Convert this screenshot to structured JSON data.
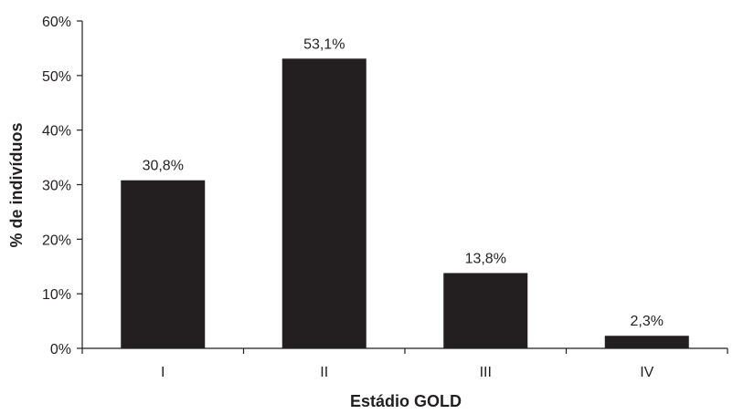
{
  "chart_data": {
    "type": "bar",
    "title": "",
    "xlabel": "Estádio GOLD",
    "ylabel": "% de indivíduos",
    "categories": [
      "I",
      "II",
      "III",
      "IV"
    ],
    "values": [
      30.8,
      53.1,
      13.8,
      2.3
    ],
    "data_labels": [
      "30,8%",
      "53,1%",
      "13,8%",
      "2,3%"
    ],
    "ylim": [
      0,
      60
    ],
    "y_ticks": [
      0,
      10,
      20,
      30,
      40,
      50,
      60
    ],
    "y_tick_labels": [
      "0%",
      "10%",
      "20%",
      "30%",
      "40%",
      "50%",
      "60%"
    ],
    "grid": false,
    "legend": "none",
    "bar_color": "#231f20"
  }
}
